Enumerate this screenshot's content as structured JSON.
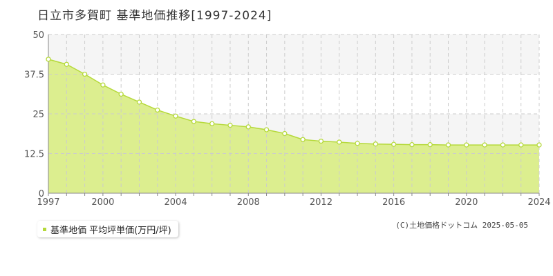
{
  "title": "日立市多賀町 基準地価推移[1997-2024]",
  "legend": {
    "label": "基準地価 平均坪単価(万円/坪)"
  },
  "copyright": "(C)土地価格ドットコム 2025-05-05",
  "colors": {
    "fill": "#dcee8f",
    "line": "#b5d93a",
    "band": "#f5f5f5",
    "grid": "#cccccc"
  },
  "chart_data": {
    "type": "area",
    "title": "",
    "xlabel": "",
    "ylabel": "",
    "xlim": [
      1997,
      2024
    ],
    "ylim": [
      0,
      50
    ],
    "grid": true,
    "legend_position": "bottom-left",
    "x_ticks": [
      "1997",
      "2000",
      "2004",
      "2008",
      "2012",
      "2016",
      "2020",
      "2024"
    ],
    "y_ticks": [
      "0",
      "12.5",
      "25",
      "37.5",
      "50"
    ],
    "series": [
      {
        "name": "基準地価 平均坪単価(万円/坪)",
        "x": [
          1997,
          1998,
          1999,
          2000,
          2001,
          2002,
          2003,
          2004,
          2005,
          2006,
          2007,
          2008,
          2009,
          2010,
          2011,
          2012,
          2013,
          2014,
          2015,
          2016,
          2017,
          2018,
          2019,
          2020,
          2021,
          2022,
          2023,
          2024
        ],
        "values": [
          42.2,
          40.6,
          37.5,
          34.1,
          31.2,
          28.7,
          26.2,
          24.3,
          22.6,
          21.9,
          21.4,
          20.9,
          20.0,
          18.8,
          16.9,
          16.4,
          16.1,
          15.7,
          15.5,
          15.4,
          15.3,
          15.3,
          15.2,
          15.2,
          15.2,
          15.2,
          15.2,
          15.2
        ]
      }
    ]
  }
}
